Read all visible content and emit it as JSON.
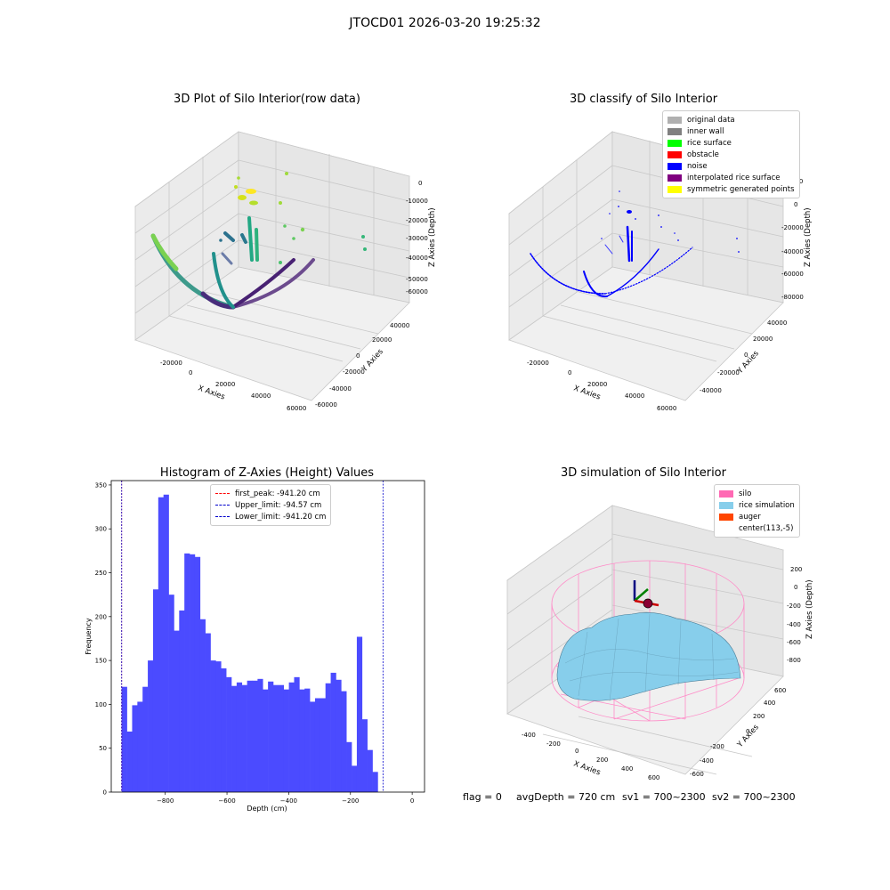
{
  "suptitle": "JTOCD01 2026-03-20 19:25:32",
  "colors": {
    "hist_bar": "#4b4bff",
    "first_peak": "#ff0000",
    "limit_line": "#0000cc",
    "grid": "#d9d9d9"
  },
  "plot1": {
    "title": "3D Plot of Silo Interior(row data)",
    "x_label": "X Axies",
    "y_label": "Y Axies",
    "z_label": "Z Axies (Depth)",
    "x_ticks": [
      "-20000",
      "0",
      "20000",
      "40000",
      "60000"
    ],
    "y_ticks": [
      "-60000",
      "-40000",
      "-20000",
      "0",
      "20000",
      "40000"
    ],
    "z_ticks": [
      "-60000",
      "-50000",
      "-40000",
      "-30000",
      "-20000",
      "-10000",
      "0"
    ],
    "colormap": "viridis"
  },
  "plot2": {
    "title": "3D classify of Silo Interior",
    "x_label": "X Axies",
    "y_label": "Y Axies",
    "z_label": "Z Axies (Depth)",
    "x_ticks": [
      "-20000",
      "0",
      "20000",
      "40000",
      "60000"
    ],
    "y_ticks": [
      "-40000",
      "-20000",
      "0",
      "20000",
      "40000"
    ],
    "z_ticks": [
      "-80000",
      "-60000",
      "-40000",
      "-20000",
      "0",
      "20000"
    ],
    "legend": [
      {
        "label": "original data",
        "color": "#b0b0b0"
      },
      {
        "label": "inner wall",
        "color": "#808080"
      },
      {
        "label": "rice surface",
        "color": "#00ff00"
      },
      {
        "label": "obstacle",
        "color": "#ff0000"
      },
      {
        "label": "noise",
        "color": "#0000ff"
      },
      {
        "label": "interpolated rice surface",
        "color": "#800080"
      },
      {
        "label": "symmetric generated points",
        "color": "#ffff00"
      }
    ]
  },
  "plot4": {
    "title": "3D simulation of Silo Interior",
    "x_label": "X Axies",
    "y_label": "Y Axies",
    "z_label": "Z Axies (Depth)",
    "x_ticks": [
      "-400",
      "-200",
      "0",
      "200",
      "400",
      "600"
    ],
    "y_ticks": [
      "-600",
      "-400",
      "-200",
      "0",
      "200",
      "400",
      "600"
    ],
    "z_ticks": [
      "-800",
      "-600",
      "-400",
      "-200",
      "0",
      "200"
    ],
    "legend": [
      {
        "label": "silo",
        "color": "#ff69b4"
      },
      {
        "label": "rice simulation",
        "color": "#87ceeb"
      },
      {
        "label": "auger",
        "color": "#ff4500"
      },
      {
        "label": "center(113,-5)",
        "color": "#ffffff"
      }
    ]
  },
  "status": {
    "flag": "flag = 0",
    "avg_depth": "avgDepth = 720 cm",
    "sv1": "sv1 = 700~2300",
    "sv2": "sv2 = 700~2300"
  },
  "chart_data": [
    {
      "type": "histogram",
      "title": "Histogram of Z-Axies (Height) Values",
      "xlabel": "Depth (cm)",
      "ylabel": "Frequency",
      "xlim": [
        -975,
        40
      ],
      "ylim": [
        0,
        355
      ],
      "x_ticks": [
        -800,
        -600,
        -400,
        -200,
        0
      ],
      "y_ticks": [
        0,
        50,
        100,
        150,
        200,
        250,
        300,
        350
      ],
      "bin_start": -941.2,
      "bin_width": 16.93,
      "values": [
        120,
        69,
        99,
        103,
        120,
        150,
        231,
        336,
        339,
        225,
        184,
        207,
        272,
        271,
        268,
        197,
        181,
        150,
        149,
        141,
        131,
        121,
        125,
        122,
        127,
        127,
        129,
        117,
        126,
        122,
        122,
        117,
        125,
        131,
        117,
        118,
        103,
        107,
        107,
        124,
        136,
        128,
        115,
        57,
        30,
        177,
        83,
        48,
        23
      ],
      "lines": [
        {
          "label": "first_peak: -941.20 cm",
          "x": -941.2,
          "color": "#ff0000"
        },
        {
          "label": "Upper_limit: -94.57 cm",
          "x": -94.57,
          "color": "#0000cc"
        },
        {
          "label": "Lower_limit: -941.20 cm",
          "x": -941.2,
          "color": "#0000cc"
        }
      ],
      "legend_position": "top-center"
    }
  ]
}
